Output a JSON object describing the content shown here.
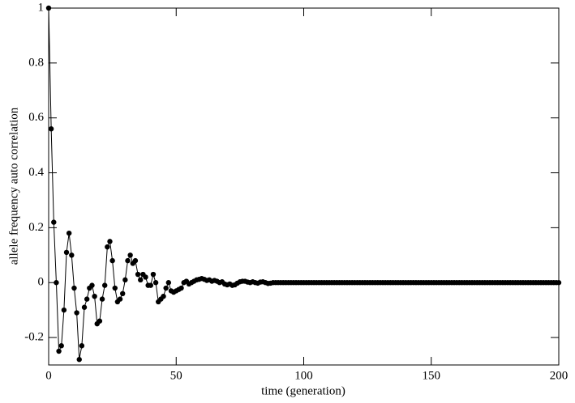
{
  "chart_data": {
    "type": "line",
    "xlabel": "time (generation)",
    "ylabel": "allele frequency auto correlation",
    "xlim": [
      0,
      200
    ],
    "ylim": [
      -0.3,
      1
    ],
    "xticks": [
      0,
      50,
      100,
      150,
      200
    ],
    "yticks": [
      -0.2,
      0,
      0.2,
      0.4,
      0.6,
      0.8,
      1
    ],
    "color": "#000000",
    "x": [
      0,
      1,
      2,
      3,
      4,
      5,
      6,
      7,
      8,
      9,
      10,
      11,
      12,
      13,
      14,
      15,
      16,
      17,
      18,
      19,
      20,
      21,
      22,
      23,
      24,
      25,
      26,
      27,
      28,
      29,
      30,
      31,
      32,
      33,
      34,
      35,
      36,
      37,
      38,
      39,
      40,
      41,
      42,
      43,
      44,
      45,
      46,
      47,
      48,
      49,
      50,
      51,
      52,
      53,
      54,
      55,
      56,
      57,
      58,
      59,
      60,
      61,
      62,
      63,
      64,
      65,
      66,
      67,
      68,
      69,
      70,
      71,
      72,
      73,
      74,
      75,
      76,
      77,
      78,
      79,
      80,
      81,
      82,
      83,
      84,
      85,
      86,
      87,
      88,
      89,
      90,
      91,
      92,
      93,
      94,
      95,
      96,
      97,
      98,
      99,
      100,
      101,
      102,
      103,
      104,
      105,
      106,
      107,
      108,
      109,
      110,
      111,
      112,
      113,
      114,
      115,
      116,
      117,
      118,
      119,
      120,
      121,
      122,
      123,
      124,
      125,
      126,
      127,
      128,
      129,
      130,
      131,
      132,
      133,
      134,
      135,
      136,
      137,
      138,
      139,
      140,
      141,
      142,
      143,
      144,
      145,
      146,
      147,
      148,
      149,
      150,
      151,
      152,
      153,
      154,
      155,
      156,
      157,
      158,
      159,
      160,
      161,
      162,
      163,
      164,
      165,
      166,
      167,
      168,
      169,
      170,
      171,
      172,
      173,
      174,
      175,
      176,
      177,
      178,
      179,
      180,
      181,
      182,
      183,
      184,
      185,
      186,
      187,
      188,
      189,
      190,
      191,
      192,
      193,
      194,
      195,
      196,
      197,
      198,
      199,
      200
    ],
    "values": [
      1,
      0.56,
      0.22,
      0,
      -0.25,
      -0.23,
      -0.1,
      0.11,
      0.18,
      0.1,
      -0.02,
      -0.11,
      -0.28,
      -0.23,
      -0.09,
      -0.06,
      -0.02,
      -0.01,
      -0.05,
      -0.15,
      -0.14,
      -0.06,
      -0.01,
      0.13,
      0.15,
      0.08,
      -0.02,
      -0.07,
      -0.06,
      -0.04,
      0.01,
      0.08,
      0.1,
      0.07,
      0.08,
      0.03,
      0.01,
      0.03,
      0.02,
      -0.01,
      -0.01,
      0.03,
      0,
      -0.07,
      -0.06,
      -0.05,
      -0.02,
      0,
      -0.03,
      -0.035,
      -0.03,
      -0.025,
      -0.02,
      0,
      0.005,
      -0.005,
      0,
      0.005,
      0.01,
      0.012,
      0.015,
      0.012,
      0.008,
      0.01,
      0.005,
      0.008,
      0.005,
      0,
      0.003,
      -0.005,
      -0.008,
      -0.005,
      -0.01,
      -0.008,
      -0.002,
      0.003,
      0.005,
      0.005,
      0.002,
      0,
      0.003,
      0,
      -0.002,
      0.002,
      0.003,
      0,
      -0.003,
      -0.002,
      0,
      0,
      0,
      0,
      0,
      0,
      0,
      0,
      0,
      0,
      0,
      0,
      0,
      0,
      0,
      0,
      0,
      0,
      0,
      0,
      0,
      0,
      0,
      0,
      0,
      0,
      0,
      0,
      0,
      0,
      0,
      0,
      0,
      0,
      0,
      0,
      0,
      0,
      0,
      0,
      0,
      0,
      0,
      0,
      0,
      0,
      0,
      0,
      0,
      0,
      0,
      0,
      0,
      0,
      0,
      0,
      0,
      0,
      0,
      0,
      0,
      0,
      0,
      0,
      0,
      0,
      0,
      0,
      0,
      0,
      0,
      0,
      0,
      0,
      0,
      0,
      0,
      0,
      0,
      0,
      0,
      0,
      0,
      0,
      0,
      0,
      0,
      0,
      0,
      0,
      0,
      0,
      0,
      0,
      0,
      0,
      0,
      0,
      0,
      0,
      0,
      0,
      0,
      0,
      0,
      0,
      0,
      0,
      0,
      0,
      0,
      0,
      0
    ]
  }
}
